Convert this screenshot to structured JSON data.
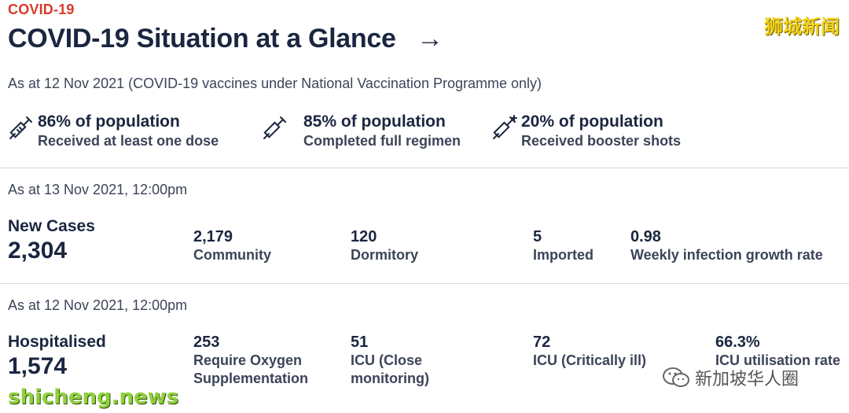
{
  "header": {
    "eyebrow": "COVID-19",
    "title": "COVID-19 Situation at a Glance",
    "arrow": "→"
  },
  "vaccination": {
    "dateline": "As at 12 Nov 2021 (COVID-19 vaccines under National Vaccination Programme only)",
    "stats": [
      {
        "icon": "syringe-icon",
        "main": "86% of population",
        "sub": "Received at least one dose"
      },
      {
        "icon": "double-syringe-icon",
        "main": "85% of population",
        "sub": "Completed full regimen"
      },
      {
        "icon": "syringe-plus-icon",
        "main": "20% of population",
        "sub": "Received booster shots"
      }
    ]
  },
  "cases": {
    "dateline": "As at 13 Nov 2021, 12:00pm",
    "heading": "New Cases",
    "total": "2,304",
    "metrics": [
      {
        "value": "2,179",
        "label": "Community"
      },
      {
        "value": "120",
        "label": "Dormitory"
      },
      {
        "value": "5",
        "label": "Imported"
      },
      {
        "value": "0.98",
        "label": "Weekly infection growth rate"
      }
    ]
  },
  "hospital": {
    "dateline": "As at 12 Nov 2021, 12:00pm",
    "heading": "Hospitalised",
    "total": "1,574",
    "metrics": [
      {
        "value": "253",
        "label_line1": "Require Oxygen",
        "label_line2": "Supplementation"
      },
      {
        "value": "51",
        "label_line1": "ICU (Close",
        "label_line2": "monitoring)"
      },
      {
        "value": "72",
        "label_line1": "ICU (Critically ill)",
        "label_line2": ""
      },
      {
        "value": "66.3%",
        "label_line1": "ICU utilisation rate",
        "label_line2": ""
      }
    ]
  },
  "watermarks": {
    "top_right": "狮城新闻",
    "bottom_left": "shicheng.news",
    "bottom_right": "新加坡华人圈"
  },
  "colors": {
    "accent": "#d93a2b",
    "navy": "#1b2640"
  }
}
